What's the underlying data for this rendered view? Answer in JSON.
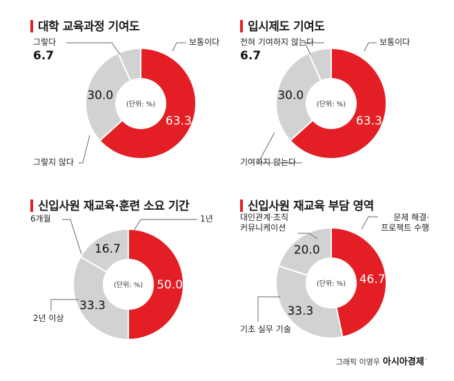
{
  "colors": {
    "accent": "#e31e24",
    "grey": "#d2d2d2",
    "separator": "#ffffff"
  },
  "center_label": "(단위: %)",
  "credit": {
    "text": "그래픽 이영우",
    "brand": "아시아경제"
  },
  "chart_data": [
    {
      "type": "pie",
      "title": "대학 교육과정 기여도",
      "slices": [
        {
          "label": "보통이다",
          "value": 63.3,
          "color": "#e31e24",
          "value_label": "63.3"
        },
        {
          "label": "그렇지 않다",
          "value": 30.0,
          "color": "#d2d2d2",
          "value_label": "30.0"
        },
        {
          "label": "그렇다",
          "value": 6.7,
          "color": "#d2d2d2",
          "value_label": "6.7"
        }
      ]
    },
    {
      "type": "pie",
      "title": "입시제도 기여도",
      "slices": [
        {
          "label": "보통이다",
          "value": 63.3,
          "color": "#e31e24",
          "value_label": "63.3"
        },
        {
          "label": "기여하지 않는다",
          "value": 30.0,
          "color": "#d2d2d2",
          "value_label": "30.0"
        },
        {
          "label": "전혀 기여하지 않는다",
          "value": 6.7,
          "color": "#d2d2d2",
          "value_label": "6.7"
        }
      ]
    },
    {
      "type": "pie",
      "title": "신입사원 재교육·훈련 소요 기간",
      "slices": [
        {
          "label": "1년",
          "value": 50.0,
          "color": "#e31e24",
          "value_label": "50.0"
        },
        {
          "label": "2년 이상",
          "value": 33.3,
          "color": "#d2d2d2",
          "value_label": "33.3"
        },
        {
          "label": "6개월",
          "value": 16.7,
          "color": "#d2d2d2",
          "value_label": "16.7"
        }
      ]
    },
    {
      "type": "pie",
      "title": "신입사원 재교육 부담 영역",
      "slices": [
        {
          "label": "문제 해결·\n프로젝트 수행",
          "value": 46.7,
          "color": "#e31e24",
          "value_label": "46.7"
        },
        {
          "label": "기초 실무 기술",
          "value": 33.3,
          "color": "#d2d2d2",
          "value_label": "33.3"
        },
        {
          "label": "대인관계·조직\n커뮤니케이션",
          "value": 20.0,
          "color": "#d2d2d2",
          "value_label": "20.0"
        }
      ]
    }
  ]
}
